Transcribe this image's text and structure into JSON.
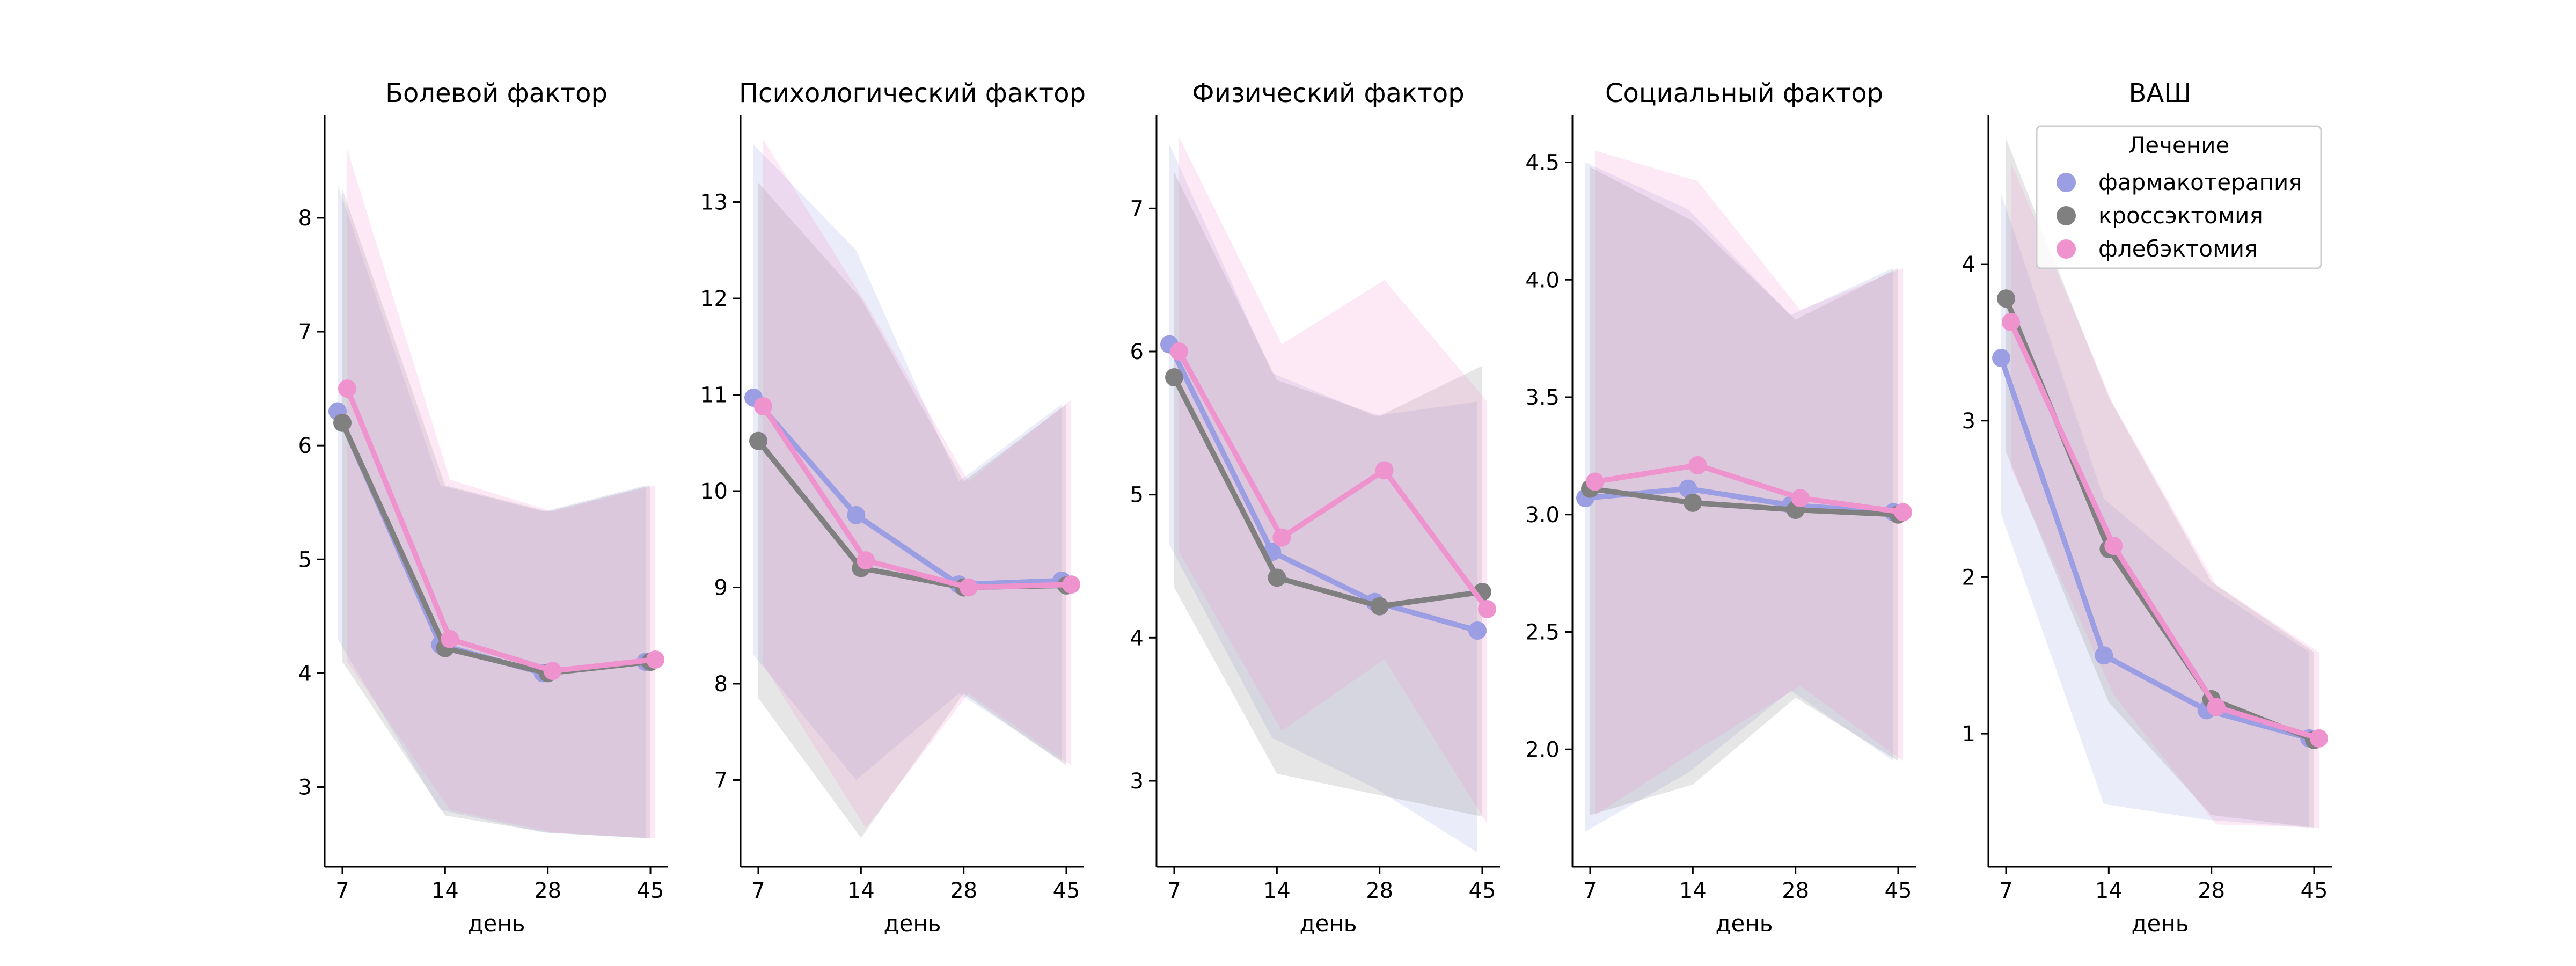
{
  "chart_data": {
    "type": "line",
    "x_categories": [
      "7",
      "14",
      "28",
      "45"
    ],
    "xlabel": "день",
    "legend": {
      "title": "Лечение",
      "placement": "top-right",
      "entries": [
        "фармакотерапия",
        "кроссэктомия",
        "флебэктомия"
      ]
    },
    "colors": {
      "фармакотерапия": "#9c9ee3",
      "кроссэктомия": "#808080",
      "флебэктомия": "#ef93cf"
    },
    "grid": false,
    "panels": [
      {
        "title": "Болевой фактор",
        "ylim": [
          2.3,
          8.9
        ],
        "yticks": [
          3,
          4,
          5,
          6,
          7,
          8
        ],
        "series": [
          {
            "name": "фармакотерапия",
            "values": [
              6.3,
              4.25,
              4.0,
              4.1
            ],
            "ci_low": [
              4.3,
              2.8,
              2.6,
              2.55
            ],
            "ci_high": [
              8.3,
              5.65,
              5.42,
              5.65
            ]
          },
          {
            "name": "кроссэктомия",
            "values": [
              6.2,
              4.22,
              4.0,
              4.1
            ],
            "ci_low": [
              4.1,
              2.75,
              2.6,
              2.55
            ],
            "ci_high": [
              8.25,
              5.65,
              5.42,
              5.65
            ]
          },
          {
            "name": "флебэктомия",
            "values": [
              6.5,
              4.3,
              4.02,
              4.12
            ],
            "ci_low": [
              4.1,
              2.8,
              2.6,
              2.55
            ],
            "ci_high": [
              8.6,
              5.7,
              5.42,
              5.65
            ]
          }
        ]
      },
      {
        "title": "Психологический фактор",
        "ylim": [
          6.1,
          13.9
        ],
        "yticks": [
          7,
          8,
          9,
          10,
          11,
          12,
          13
        ],
        "series": [
          {
            "name": "фармакотерапия",
            "values": [
              10.97,
              9.75,
              9.03,
              9.07
            ],
            "ci_low": [
              8.3,
              7.0,
              7.9,
              7.2
            ],
            "ci_high": [
              13.6,
              12.5,
              10.1,
              10.9
            ]
          },
          {
            "name": "кроссэктомия",
            "values": [
              10.52,
              9.2,
              9.0,
              9.02
            ],
            "ci_low": [
              7.85,
              6.4,
              7.9,
              7.15
            ],
            "ci_high": [
              13.2,
              12.0,
              10.1,
              10.9
            ]
          },
          {
            "name": "флебэктомия",
            "values": [
              10.88,
              9.28,
              9.0,
              9.03
            ],
            "ci_low": [
              8.2,
              6.5,
              7.9,
              7.15
            ],
            "ci_high": [
              13.65,
              11.95,
              10.1,
              10.95
            ]
          }
        ]
      },
      {
        "title": "Физический фактор",
        "ylim": [
          2.4,
          7.65
        ],
        "yticks": [
          3,
          4,
          5,
          6,
          7
        ],
        "series": [
          {
            "name": "фармакотерапия",
            "values": [
              6.05,
              4.6,
              4.25,
              4.05
            ],
            "ci_low": [
              4.65,
              3.3,
              2.95,
              2.5
            ],
            "ci_high": [
              7.45,
              5.85,
              5.55,
              5.65
            ]
          },
          {
            "name": "кроссэктомия",
            "values": [
              5.82,
              4.42,
              4.22,
              4.32
            ],
            "ci_low": [
              4.35,
              3.05,
              2.9,
              2.75
            ],
            "ci_high": [
              7.25,
              5.8,
              5.55,
              5.9
            ]
          },
          {
            "name": "флебэктомия",
            "values": [
              6.0,
              4.7,
              5.17,
              4.2
            ],
            "ci_low": [
              4.6,
              3.35,
              3.85,
              2.7
            ],
            "ci_high": [
              7.5,
              6.05,
              6.5,
              5.65
            ]
          }
        ]
      },
      {
        "title": "Социальный фактор",
        "ylim": [
          1.5,
          4.7
        ],
        "yticks": [
          2.0,
          2.5,
          3.0,
          3.5,
          4.0,
          4.5
        ],
        "ytick_labels": [
          "2.0",
          "2.5",
          "3.0",
          "3.5",
          "4.0",
          "4.5"
        ],
        "series": [
          {
            "name": "фармакотерапия",
            "values": [
              3.07,
              3.11,
              3.04,
              3.01
            ],
            "ci_low": [
              1.65,
              1.9,
              2.25,
              1.95
            ],
            "ci_high": [
              4.5,
              4.3,
              3.85,
              4.05
            ]
          },
          {
            "name": "кроссэктомия",
            "values": [
              3.11,
              3.05,
              3.02,
              3.0
            ],
            "ci_low": [
              1.72,
              1.85,
              2.22,
              1.95
            ],
            "ci_high": [
              4.48,
              4.25,
              3.83,
              4.05
            ]
          },
          {
            "name": "флебэктомия",
            "values": [
              3.14,
              3.21,
              3.07,
              3.01
            ],
            "ci_low": [
              1.72,
              2.0,
              2.27,
              1.95
            ],
            "ci_high": [
              4.55,
              4.42,
              3.87,
              4.05
            ]
          }
        ]
      },
      {
        "title": "ВАШ",
        "ylim": [
          0.15,
          4.95
        ],
        "yticks": [
          1,
          2,
          3,
          4
        ],
        "series": [
          {
            "name": "фармакотерапия",
            "values": [
              3.4,
              1.5,
              1.15,
              0.97
            ],
            "ci_low": [
              2.4,
              0.55,
              0.45,
              0.4
            ],
            "ci_high": [
              4.45,
              2.5,
              1.95,
              1.52
            ]
          },
          {
            "name": "кроссэктомия",
            "values": [
              3.78,
              2.18,
              1.22,
              0.96
            ],
            "ci_low": [
              2.8,
              1.2,
              0.48,
              0.4
            ],
            "ci_high": [
              4.8,
              3.15,
              1.97,
              1.52
            ]
          },
          {
            "name": "флебэктомия",
            "values": [
              3.63,
              2.2,
              1.17,
              0.97
            ],
            "ci_low": [
              2.7,
              1.25,
              0.42,
              0.4
            ],
            "ci_high": [
              4.65,
              3.1,
              1.95,
              1.52
            ]
          }
        ]
      }
    ]
  }
}
